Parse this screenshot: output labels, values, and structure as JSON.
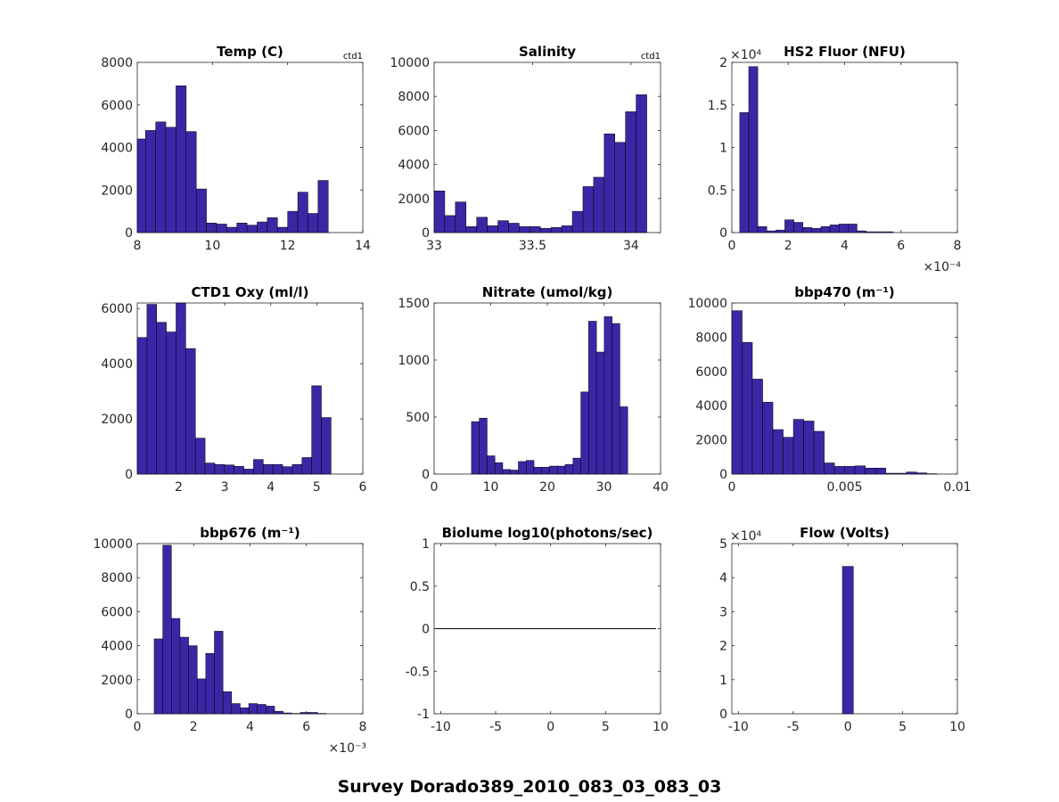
{
  "figure_title": "Survey Dorado389_2010_083_03_083_03",
  "bar_color": "#3b27a6",
  "chart_data": [
    {
      "type": "bar",
      "title": "Temp (C)",
      "tag": "ctd1",
      "xlim": [
        8,
        14
      ],
      "ylim": [
        0,
        8000
      ],
      "xticks": [
        {
          "v": 8,
          "label": "8"
        },
        {
          "v": 10,
          "label": "10"
        },
        {
          "v": 12,
          "label": "12"
        },
        {
          "v": 14,
          "label": "14"
        }
      ],
      "yticks": [
        {
          "v": 0,
          "label": "0"
        },
        {
          "v": 2000,
          "label": "2000"
        },
        {
          "v": 4000,
          "label": "4000"
        },
        {
          "v": 6000,
          "label": "6000"
        },
        {
          "v": 8000,
          "label": "8000"
        }
      ],
      "bin_start": 7.95,
      "bin_width": 0.27,
      "values": [
        4400,
        4800,
        5200,
        4950,
        6900,
        4750,
        2050,
        450,
        400,
        250,
        450,
        350,
        500,
        700,
        250,
        1000,
        1900,
        900,
        2450
      ]
    },
    {
      "type": "bar",
      "title": "Salinity",
      "tag": "ctd1",
      "xlim": [
        33,
        34.15
      ],
      "ylim": [
        0,
        10000
      ],
      "xticks": [
        {
          "v": 33,
          "label": "33"
        },
        {
          "v": 33.5,
          "label": "33.5"
        },
        {
          "v": 34,
          "label": "34"
        }
      ],
      "yticks": [
        {
          "v": 0,
          "label": "0"
        },
        {
          "v": 2000,
          "label": "2000"
        },
        {
          "v": 4000,
          "label": "4000"
        },
        {
          "v": 6000,
          "label": "6000"
        },
        {
          "v": 8000,
          "label": "8000"
        },
        {
          "v": 10000,
          "label": "10000"
        }
      ],
      "bin_start": 33.0,
      "bin_width": 0.054,
      "values": [
        2450,
        1000,
        1800,
        350,
        900,
        400,
        700,
        550,
        350,
        350,
        250,
        300,
        400,
        1250,
        2700,
        3250,
        5800,
        5300,
        7100,
        8100
      ]
    },
    {
      "type": "bar",
      "title": "HS2 Fluor (NFU)",
      "tag": "",
      "xlim": [
        0,
        8
      ],
      "ylim": [
        0,
        2
      ],
      "y_exponent": "×10⁴",
      "x_exponent": "×10⁻⁴",
      "xticks": [
        {
          "v": 0,
          "label": "0"
        },
        {
          "v": 2,
          "label": "2"
        },
        {
          "v": 4,
          "label": "4"
        },
        {
          "v": 6,
          "label": "6"
        },
        {
          "v": 8,
          "label": "8"
        }
      ],
      "yticks": [
        {
          "v": 0,
          "label": "0"
        },
        {
          "v": 0.5,
          "label": "0.5"
        },
        {
          "v": 1,
          "label": "1"
        },
        {
          "v": 1.5,
          "label": "1.5"
        },
        {
          "v": 2,
          "label": "2"
        }
      ],
      "bin_start": 0.28,
      "bin_width": 0.32,
      "values": [
        1.41,
        1.95,
        0.07,
        0.02,
        0.03,
        0.15,
        0.12,
        0.06,
        0.05,
        0.07,
        0.09,
        0.1,
        0.1,
        0.02,
        0.01,
        0.01,
        0.01,
        0.0,
        0.0,
        0.0
      ]
    },
    {
      "type": "bar",
      "title": "CTD1 Oxy (ml/l)",
      "tag": "",
      "xlim": [
        1.1,
        6
      ],
      "ylim": [
        0,
        6200
      ],
      "xticks": [
        {
          "v": 2,
          "label": "2"
        },
        {
          "v": 3,
          "label": "3"
        },
        {
          "v": 4,
          "label": "4"
        },
        {
          "v": 5,
          "label": "5"
        },
        {
          "v": 6,
          "label": "6"
        }
      ],
      "yticks": [
        {
          "v": 0,
          "label": "0"
        },
        {
          "v": 2000,
          "label": "2000"
        },
        {
          "v": 4000,
          "label": "4000"
        },
        {
          "v": 6000,
          "label": "6000"
        }
      ],
      "bin_start": 1.1,
      "bin_width": 0.2105,
      "values": [
        4950,
        6150,
        5500,
        5150,
        6250,
        4550,
        1300,
        400,
        350,
        330,
        280,
        180,
        530,
        350,
        350,
        270,
        350,
        600,
        3200,
        2050
      ]
    },
    {
      "type": "bar",
      "title": "Nitrate (umol/kg)",
      "tag": "",
      "xlim": [
        0,
        40
      ],
      "ylim": [
        0,
        1500
      ],
      "xticks": [
        {
          "v": 0,
          "label": "0"
        },
        {
          "v": 10,
          "label": "10"
        },
        {
          "v": 20,
          "label": "20"
        },
        {
          "v": 30,
          "label": "30"
        },
        {
          "v": 40,
          "label": "40"
        }
      ],
      "yticks": [
        {
          "v": 0,
          "label": "0"
        },
        {
          "v": 500,
          "label": "500"
        },
        {
          "v": 1000,
          "label": "1000"
        },
        {
          "v": 1500,
          "label": "1500"
        }
      ],
      "bin_start": 6.6,
      "bin_width": 1.38,
      "values": [
        460,
        490,
        160,
        100,
        40,
        35,
        110,
        120,
        60,
        60,
        70,
        70,
        85,
        140,
        720,
        1340,
        1070,
        1380,
        1320,
        590
      ]
    },
    {
      "type": "bar",
      "title": "bbp470 (m⁻¹)",
      "tag": "",
      "xlim": [
        0,
        0.01
      ],
      "ylim": [
        0,
        10000
      ],
      "xticks": [
        {
          "v": 0,
          "label": "0"
        },
        {
          "v": 0.005,
          "label": "0.005"
        },
        {
          "v": 0.01,
          "label": "0.01"
        }
      ],
      "yticks": [
        {
          "v": 0,
          "label": "0"
        },
        {
          "v": 2000,
          "label": "2000"
        },
        {
          "v": 4000,
          "label": "4000"
        },
        {
          "v": 6000,
          "label": "6000"
        },
        {
          "v": 8000,
          "label": "8000"
        },
        {
          "v": 10000,
          "label": "10000"
        }
      ],
      "bin_start": 0.0,
      "bin_width": 0.000455,
      "values": [
        9550,
        7700,
        5550,
        4200,
        2600,
        2150,
        3200,
        3100,
        2500,
        650,
        450,
        450,
        480,
        350,
        350,
        50,
        50,
        120,
        70,
        20
      ]
    },
    {
      "type": "bar",
      "title": "bbp676 (m⁻¹)",
      "tag": "",
      "xlim": [
        0,
        8
      ],
      "ylim": [
        0,
        10000
      ],
      "x_exponent": "×10⁻³",
      "xticks": [
        {
          "v": 0,
          "label": "0"
        },
        {
          "v": 2,
          "label": "2"
        },
        {
          "v": 4,
          "label": "4"
        },
        {
          "v": 6,
          "label": "6"
        },
        {
          "v": 8,
          "label": "8"
        }
      ],
      "yticks": [
        {
          "v": 0,
          "label": "0"
        },
        {
          "v": 2000,
          "label": "2000"
        },
        {
          "v": 4000,
          "label": "4000"
        },
        {
          "v": 6000,
          "label": "6000"
        },
        {
          "v": 8000,
          "label": "8000"
        },
        {
          "v": 10000,
          "label": "10000"
        }
      ],
      "bin_start": 0.6,
      "bin_width": 0.305,
      "values": [
        4400,
        9900,
        5600,
        4500,
        4000,
        2050,
        3550,
        4850,
        1300,
        600,
        350,
        600,
        550,
        450,
        150,
        50,
        20,
        80,
        80,
        20
      ]
    },
    {
      "type": "line",
      "title": "Biolume log10(photons/sec)",
      "tag": "",
      "xlim": [
        -10.6,
        10
      ],
      "ylim": [
        -1,
        1
      ],
      "xticks": [
        {
          "v": -10,
          "label": "-10"
        },
        {
          "v": -5,
          "label": "-5"
        },
        {
          "v": 0,
          "label": "0"
        },
        {
          "v": 5,
          "label": "5"
        },
        {
          "v": 10,
          "label": "10"
        }
      ],
      "yticks": [
        {
          "v": -1,
          "label": "-1"
        },
        {
          "v": -0.5,
          "label": "-0.5"
        },
        {
          "v": 0,
          "label": "0"
        },
        {
          "v": 0.5,
          "label": "0.5"
        },
        {
          "v": 1,
          "label": "1"
        }
      ],
      "x": [
        -10.6,
        9.6
      ],
      "y": [
        0,
        0
      ]
    },
    {
      "type": "bar",
      "title": "Flow (Volts)",
      "tag": "",
      "xlim": [
        -10.6,
        10
      ],
      "ylim": [
        0,
        5
      ],
      "y_exponent": "×10⁴",
      "xticks": [
        {
          "v": -10,
          "label": "-10"
        },
        {
          "v": -5,
          "label": "-5"
        },
        {
          "v": 0,
          "label": "0"
        },
        {
          "v": 5,
          "label": "5"
        },
        {
          "v": 10,
          "label": "10"
        }
      ],
      "yticks": [
        {
          "v": 0,
          "label": "0"
        },
        {
          "v": 1,
          "label": "1"
        },
        {
          "v": 2,
          "label": "2"
        },
        {
          "v": 3,
          "label": "3"
        },
        {
          "v": 4,
          "label": "4"
        },
        {
          "v": 5,
          "label": "5"
        }
      ],
      "bin_start": -0.5,
      "bin_width": 1.0,
      "values": [
        4.33
      ]
    }
  ]
}
